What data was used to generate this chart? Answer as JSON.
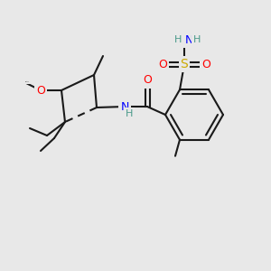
{
  "background_color": "#e8e8e8",
  "bond_color": "#1a1a1a",
  "bond_width": 1.5,
  "atom_colors": {
    "O": "#ff0000",
    "N": "#0000ff",
    "S": "#ccaa00",
    "H": "#4a9a8a",
    "C": "#1a1a1a"
  },
  "font_size_atom": 9,
  "font_size_small": 8
}
